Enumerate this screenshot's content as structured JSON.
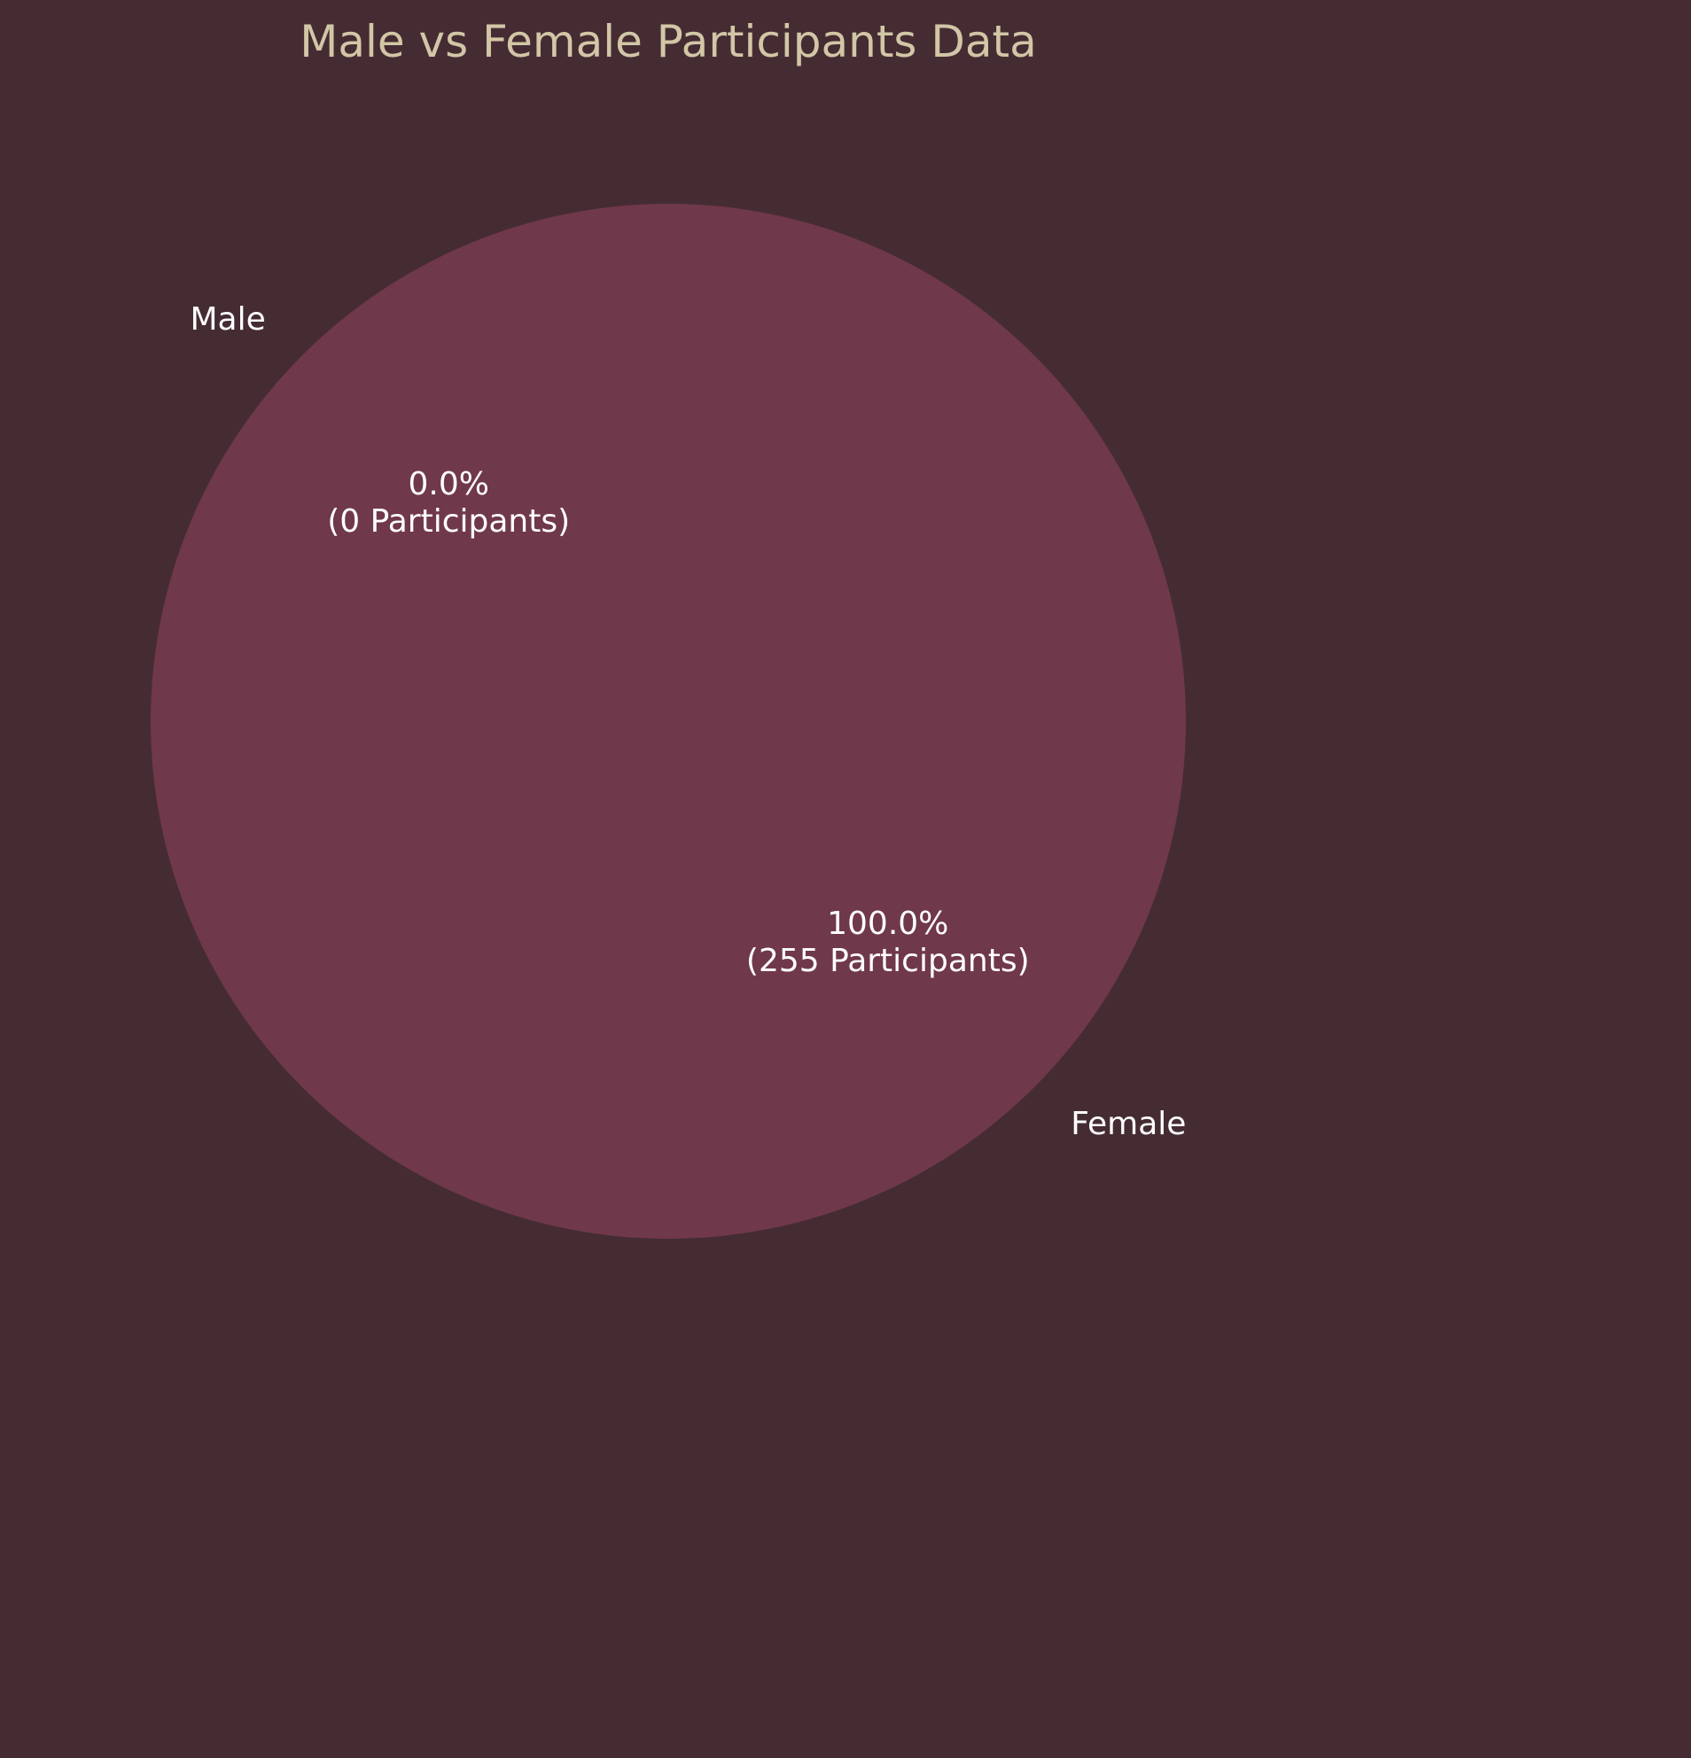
{
  "chart_data": {
    "type": "pie",
    "title": "Male vs Female Participants Data",
    "categories": [
      "Male",
      "Female"
    ],
    "values": [
      0,
      255
    ],
    "percent_labels": [
      "0.0%",
      "100.0%"
    ],
    "count_labels": [
      "(0 Participants)",
      "(255 Participants)"
    ],
    "colors": {
      "background": "#452c33",
      "title": "#d2c6a6",
      "labels": "#ffffff",
      "slices": [
        "#b25b6e",
        "#70384b"
      ]
    },
    "legend": "none"
  }
}
